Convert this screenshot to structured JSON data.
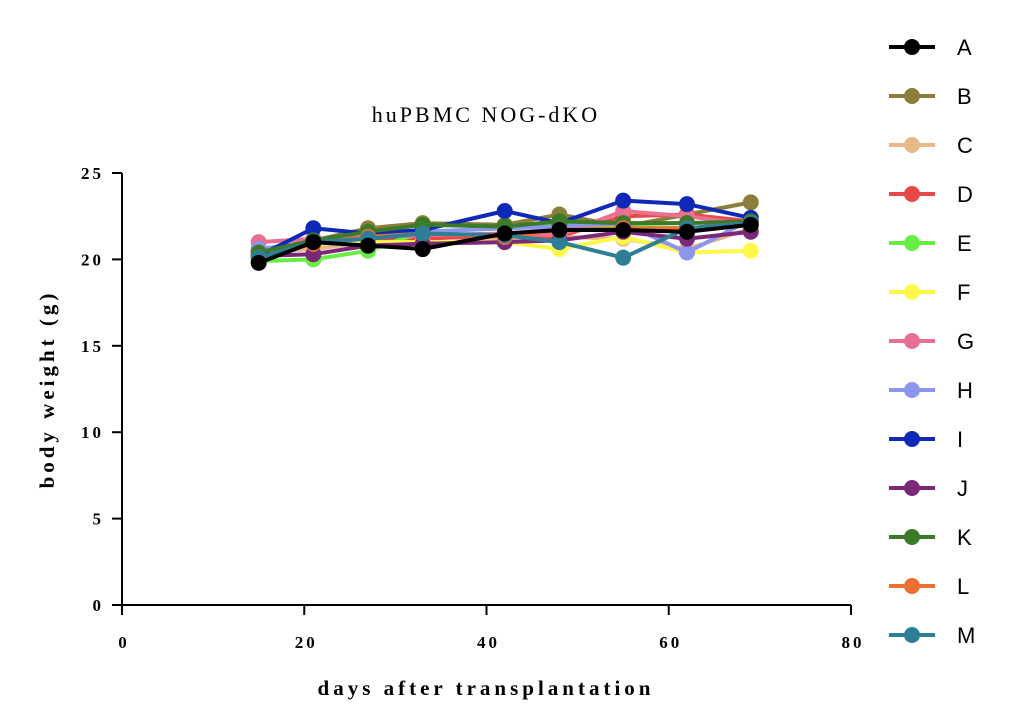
{
  "chart_data": {
    "type": "line",
    "title": "huPBMC NOG-dKO",
    "xlabel": "days after transplantation",
    "ylabel": "body weight (g)",
    "xlim": [
      0,
      80
    ],
    "ylim": [
      0,
      25
    ],
    "xticks": [
      0,
      20,
      40,
      60,
      80
    ],
    "yticks": [
      0,
      5,
      10,
      15,
      20,
      25
    ],
    "grid": false,
    "legend_position": "right",
    "x": [
      15,
      21,
      27,
      33,
      42,
      48,
      55,
      62,
      69
    ],
    "series": [
      {
        "name": "A",
        "color": "#000000",
        "marker": "circle",
        "values": [
          19.8,
          21.0,
          20.8,
          20.6,
          21.5,
          21.7,
          21.7,
          21.6,
          22.0
        ]
      },
      {
        "name": "B",
        "color": "#8B7D3A",
        "marker": "circle",
        "values": [
          20.5,
          21.1,
          21.8,
          22.1,
          22.0,
          22.6,
          21.9,
          22.6,
          23.3
        ]
      },
      {
        "name": "C",
        "color": "#E8B888",
        "marker": "circle",
        "values": [
          20.4,
          20.6,
          21.0,
          21.3,
          21.2,
          21.3,
          21.2,
          20.6,
          21.8
        ]
      },
      {
        "name": "D",
        "color": "#E84848",
        "marker": "circle",
        "values": [
          20.2,
          21.0,
          21.2,
          21.2,
          21.4,
          21.3,
          22.5,
          22.6,
          22.2
        ]
      },
      {
        "name": "E",
        "color": "#66EE44",
        "marker": "circle",
        "values": [
          19.9,
          20.0,
          20.5,
          21.6,
          21.8,
          22.0,
          21.9,
          21.8,
          22.1
        ]
      },
      {
        "name": "F",
        "color": "#FFF84A",
        "marker": "circle",
        "values": [
          20.3,
          20.9,
          21.0,
          21.0,
          21.0,
          20.6,
          21.3,
          20.4,
          20.5
        ]
      },
      {
        "name": "G",
        "color": "#E87090",
        "marker": "circle",
        "values": [
          21.0,
          21.2,
          21.3,
          21.4,
          21.5,
          21.4,
          22.8,
          22.5,
          22.0
        ]
      },
      {
        "name": "H",
        "color": "#8C96F0",
        "marker": "circle",
        "values": [
          20.6,
          21.0,
          21.2,
          21.6,
          21.8,
          21.9,
          22.1,
          20.4,
          22.3
        ]
      },
      {
        "name": "I",
        "color": "#1028B8",
        "marker": "circle",
        "values": [
          20.2,
          21.8,
          21.5,
          21.7,
          22.8,
          22.1,
          23.4,
          23.2,
          22.4
        ]
      },
      {
        "name": "J",
        "color": "#7B2878",
        "marker": "circle",
        "values": [
          20.2,
          20.3,
          20.8,
          20.9,
          21.0,
          21.1,
          21.6,
          21.2,
          21.6
        ]
      },
      {
        "name": "K",
        "color": "#3A7A28",
        "marker": "circle",
        "values": [
          20.4,
          21.1,
          21.6,
          22.0,
          21.9,
          22.2,
          22.1,
          22.1,
          22.2
        ]
      },
      {
        "name": "L",
        "color": "#EE7030",
        "marker": "circle",
        "values": [
          20.1,
          20.9,
          21.3,
          21.5,
          21.3,
          21.7,
          21.8,
          21.8,
          22.1
        ]
      },
      {
        "name": "M",
        "color": "#2E7E98",
        "marker": "circle",
        "values": [
          20.1,
          21.0,
          21.2,
          21.5,
          21.4,
          21.0,
          20.1,
          21.8,
          22.1
        ]
      }
    ]
  }
}
